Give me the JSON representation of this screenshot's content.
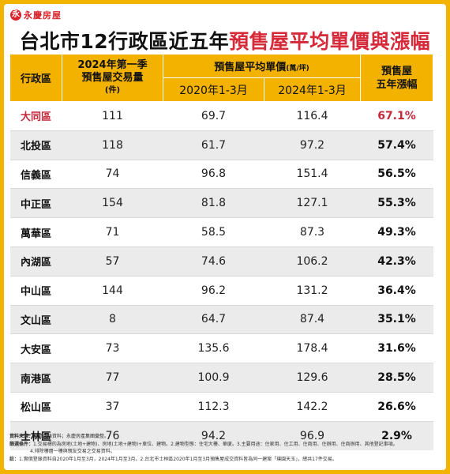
{
  "brand": {
    "mark": "永",
    "name": "永慶房屋"
  },
  "title": {
    "part1": "台北市12行政區近五年",
    "part2": "預售屋平均單價與漲幅"
  },
  "table": {
    "headers": {
      "district": "行政區",
      "volume_l1": "2024年第一季",
      "volume_l2": "預售屋交易量",
      "volume_unit": "(件)",
      "avg_price": "預售屋平均單價",
      "avg_price_unit": "(萬/坪)",
      "year_2020": "2020年1-3月",
      "year_2024": "2024年1-3月",
      "rise_l1": "預售屋",
      "rise_l2": "五年漲幅"
    },
    "rows": [
      {
        "district": "大同區",
        "volume": "111",
        "p2020": "69.7",
        "p2024": "116.4",
        "rise": "67.1%"
      },
      {
        "district": "北投區",
        "volume": "118",
        "p2020": "61.7",
        "p2024": "97.2",
        "rise": "57.4%"
      },
      {
        "district": "信義區",
        "volume": "74",
        "p2020": "96.8",
        "p2024": "151.4",
        "rise": "56.5%"
      },
      {
        "district": "中正區",
        "volume": "154",
        "p2020": "81.8",
        "p2024": "127.1",
        "rise": "55.3%"
      },
      {
        "district": "萬華區",
        "volume": "71",
        "p2020": "58.5",
        "p2024": "87.3",
        "rise": "49.3%"
      },
      {
        "district": "內湖區",
        "volume": "57",
        "p2020": "74.6",
        "p2024": "106.2",
        "rise": "42.3%"
      },
      {
        "district": "中山區",
        "volume": "144",
        "p2020": "96.2",
        "p2024": "131.2",
        "rise": "36.4%"
      },
      {
        "district": "文山區",
        "volume": "8",
        "p2020": "64.7",
        "p2024": "87.4",
        "rise": "35.1%"
      },
      {
        "district": "大安區",
        "volume": "73",
        "p2020": "135.6",
        "p2024": "178.4",
        "rise": "31.6%"
      },
      {
        "district": "南港區",
        "volume": "77",
        "p2020": "100.9",
        "p2024": "129.6",
        "rise": "28.5%"
      },
      {
        "district": "松山區",
        "volume": "37",
        "p2020": "112.3",
        "p2024": "142.2",
        "rise": "26.6%"
      },
      {
        "district": "士林區",
        "volume": "76",
        "p2020": "94.2",
        "p2024": "96.9",
        "rise": "2.9%"
      }
    ]
  },
  "notes": {
    "source_label": "資料來源：",
    "source_text": "實價登錄資料；永慶房產集團彙整。",
    "filter_label": "篩選條件：",
    "filter_1": "1.交易標的為房地(土地+建物)、房地(土地+建物)+車位、建物。2.建物型態：住宅大樓、華廈。3.主要用途：住家用、住工用、住商用、住辦用、住商辦用、其他登記事項。",
    "filter_2": "4.排除樓層一樓與親友交易之交易資料。",
    "note_label": "註：",
    "note_text": "1.實價登錄資料自2020年1月至3月，2024年1月至3月。2.台北市士林區2020年1月至3月預售屋成交資料皆為同一建案「璞園天玉」，總共17件交易。"
  }
}
